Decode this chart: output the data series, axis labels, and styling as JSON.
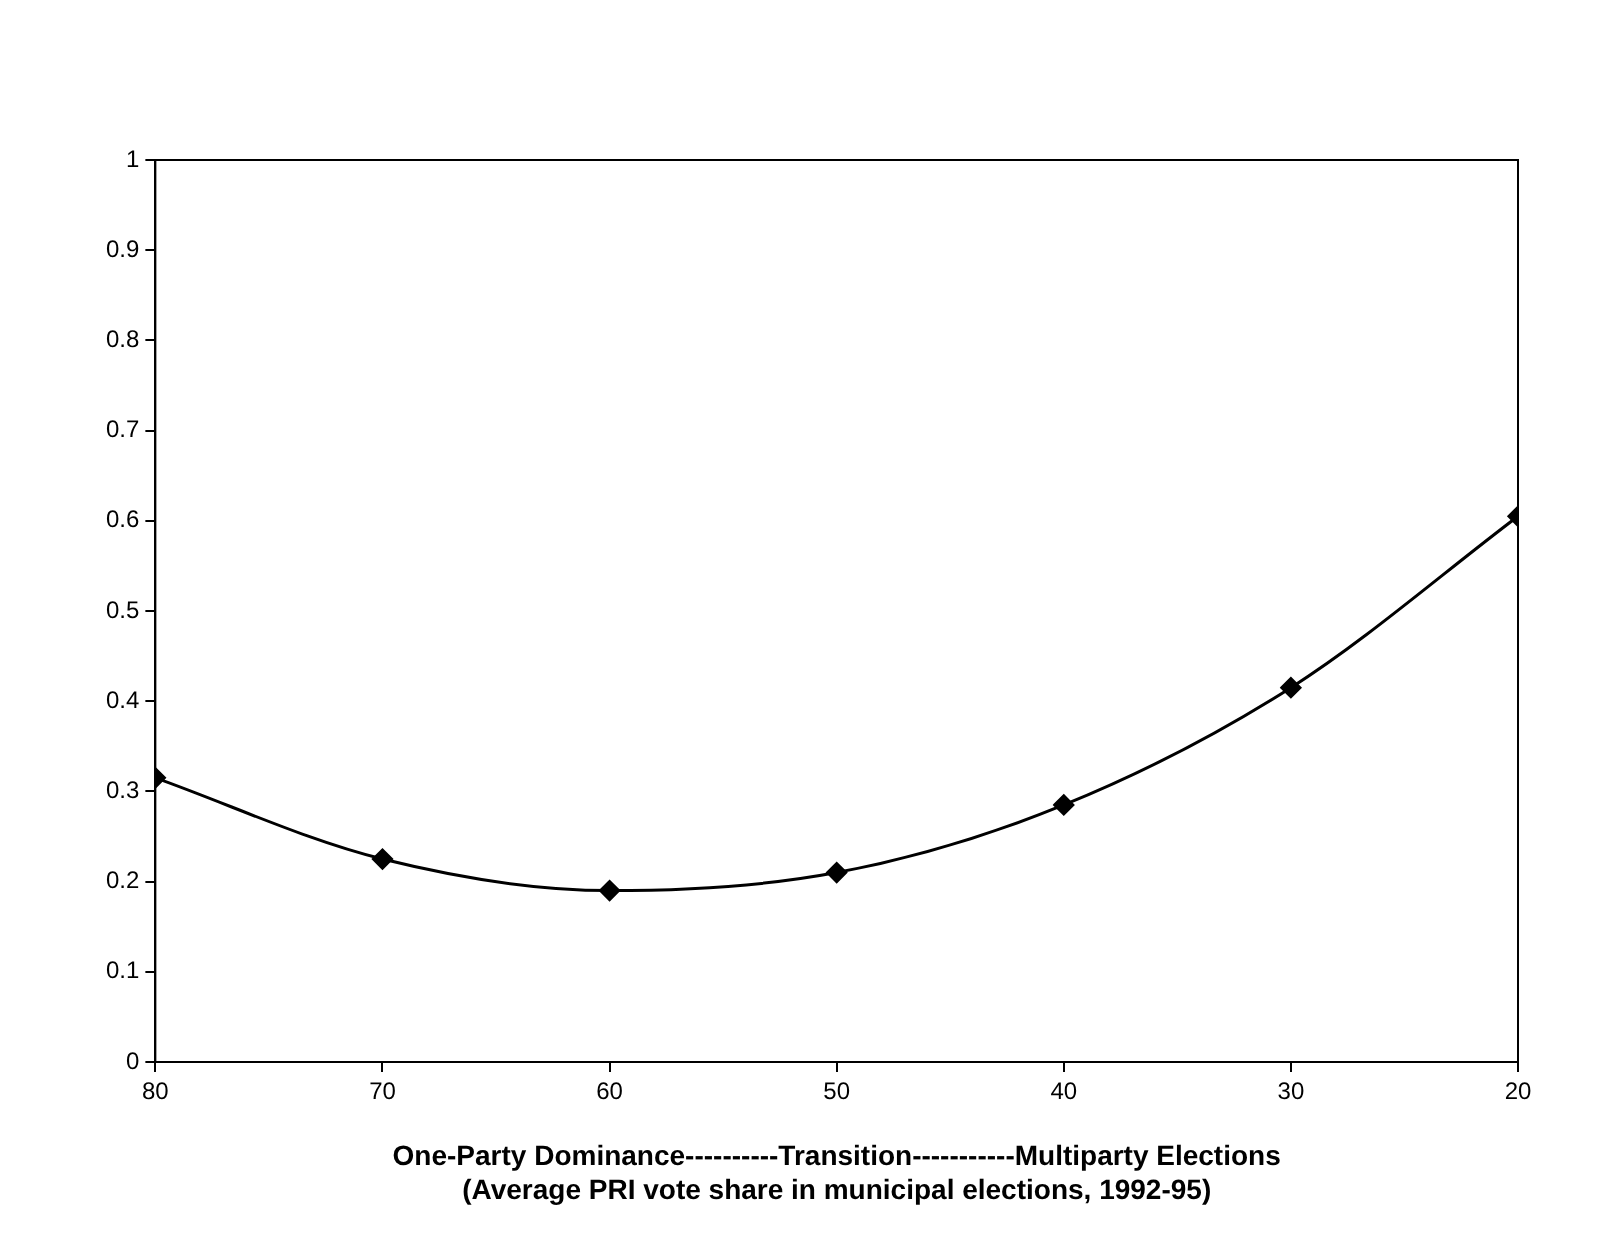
{
  "chart_data": {
    "type": "line",
    "xlabel": "One-Party Dominance----------Transition-----------Multiparty Elections",
    "annotations": [
      "(Average PRI vote share in municipal elections, 1992-95)"
    ],
    "x": [
      80,
      70,
      60,
      50,
      40,
      30,
      20
    ],
    "series": [
      {
        "color": "#000000",
        "values": [
          0.315,
          0.225,
          0.19,
          0.21,
          0.285,
          0.415,
          0.605
        ]
      }
    ],
    "xlim": [
      80,
      20
    ],
    "xticks": [
      80,
      70,
      60,
      50,
      40,
      30,
      20
    ],
    "ylim": [
      0,
      1
    ],
    "yticks": [
      0,
      0.1,
      0.2,
      0.3,
      0.4,
      0.5,
      0.6,
      0.7,
      0.8,
      0.9,
      1
    ],
    "grid": false,
    "legend": false,
    "marker": "diamond",
    "line_style": "solid"
  }
}
